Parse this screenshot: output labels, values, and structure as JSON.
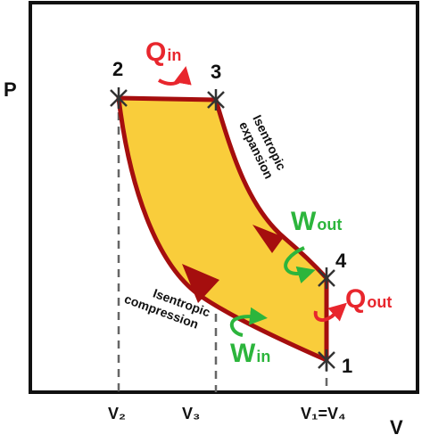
{
  "axes": {
    "y_label": "P",
    "x_label": "V"
  },
  "points": {
    "p1": "1",
    "p2": "2",
    "p3": "3",
    "p4": "4"
  },
  "x_ticks": {
    "v2": "V₂",
    "v3": "V₃",
    "v14": "V₁=V₄"
  },
  "processes": {
    "expansion_line1": "Isentropic",
    "expansion_line2": "expansion",
    "compression_line1": "Isentropic",
    "compression_line2": "compression"
  },
  "energy": {
    "q_in_main": "Q",
    "q_in_sub": "in",
    "q_out_main": "Q",
    "q_out_sub": "out",
    "w_out_main": "W",
    "w_out_sub": "out",
    "w_in_main": "W",
    "w_in_sub": "in"
  },
  "colors": {
    "fill": "#f9cd3b",
    "outline": "#a50e0e",
    "q_color": "#e8262d",
    "w_color": "#2cb53c",
    "axis": "#111111",
    "dashed": "#666666"
  }
}
